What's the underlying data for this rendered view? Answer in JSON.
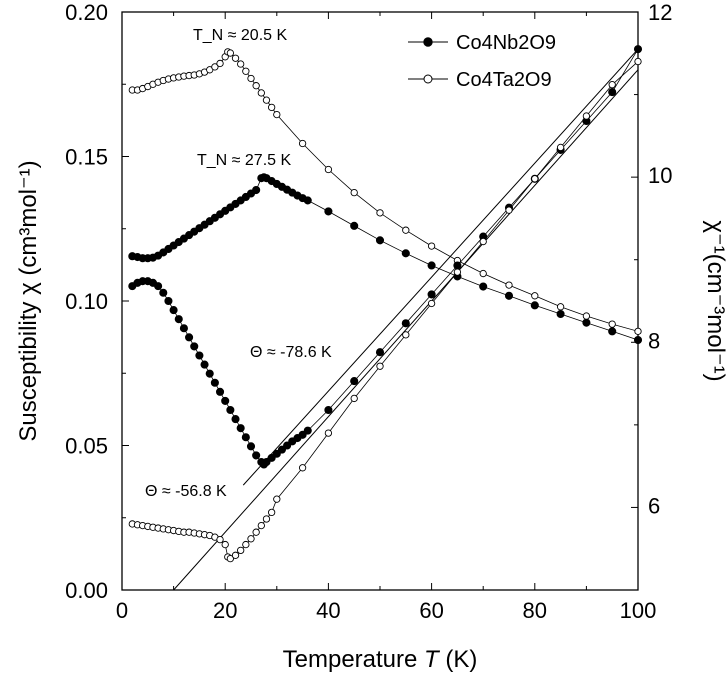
{
  "chart_data": {
    "type": "scatter",
    "xlabel": "Temperature",
    "xlabel_var": "T",
    "xlabel_unit": "(K)",
    "ylabel_left": "Susceptibility  χ (cm³mol⁻¹)",
    "ylabel_right": "χ⁻¹(cm⁻³mol⁻¹)",
    "xlim": [
      0,
      100
    ],
    "ylim_left": [
      0.0,
      0.2
    ],
    "ylim_right": [
      5.0,
      12.0
    ],
    "x_ticks": [
      "0",
      "20",
      "40",
      "60",
      "80",
      "100"
    ],
    "y_left_ticks": [
      "0.00",
      "0.05",
      "0.10",
      "0.15",
      "0.20"
    ],
    "y_right_ticks": [
      "6",
      "8",
      "10",
      "12"
    ],
    "legend": [
      {
        "label": "Co4Nb2O9",
        "marker": "filled-circle"
      },
      {
        "label": "Co4Ta2O9",
        "marker": "open-circle"
      }
    ],
    "annotations": {
      "tn_ta": "T_N ≈ 20.5 K",
      "tn_nb": "T_N ≈ 27.5 K",
      "theta_nb": "Θ ≈ -78.6 K",
      "theta_ta": "Θ ≈ -56.8 K"
    },
    "series": [
      {
        "name": "Co4Nb2O9 χ",
        "axis": "left",
        "marker": "filled",
        "x": [
          2,
          3,
          4,
          5,
          6,
          7,
          8,
          9,
          10,
          11,
          12,
          13,
          14,
          15,
          16,
          17,
          18,
          19,
          20,
          21,
          22,
          23,
          24,
          25,
          26,
          27,
          27.5,
          28,
          29,
          30,
          31,
          32,
          33,
          34,
          35,
          36,
          40,
          45,
          50,
          55,
          60,
          65,
          70,
          75,
          80,
          85,
          90,
          95,
          100
        ],
        "y": [
          0.1155,
          0.1152,
          0.1148,
          0.1148,
          0.115,
          0.1157,
          0.1168,
          0.118,
          0.1192,
          0.1204,
          0.1216,
          0.1228,
          0.124,
          0.1252,
          0.1264,
          0.1276,
          0.1288,
          0.13,
          0.1312,
          0.1324,
          0.1336,
          0.1348,
          0.136,
          0.1372,
          0.1384,
          0.1425,
          0.1428,
          0.1425,
          0.1415,
          0.1405,
          0.1395,
          0.1385,
          0.1375,
          0.1365,
          0.1356,
          0.1348,
          0.131,
          0.126,
          0.121,
          0.1165,
          0.1123,
          0.1085,
          0.105,
          0.1018,
          0.0985,
          0.0955,
          0.0925,
          0.0895,
          0.0865
        ]
      },
      {
        "name": "Co4Ta2O9 χ",
        "axis": "left",
        "marker": "open",
        "x": [
          2,
          3,
          4,
          5,
          6,
          7,
          8,
          9,
          10,
          11,
          12,
          13,
          14,
          15,
          16,
          17,
          18,
          19,
          20,
          20.5,
          21,
          22,
          23,
          24,
          25,
          26,
          27,
          28,
          29,
          30,
          35,
          40,
          45,
          50,
          55,
          60,
          65,
          70,
          75,
          80,
          85,
          90,
          95,
          100
        ],
        "y": [
          0.173,
          0.173,
          0.1735,
          0.1742,
          0.175,
          0.1757,
          0.1763,
          0.1768,
          0.1772,
          0.1775,
          0.1778,
          0.178,
          0.1782,
          0.1786,
          0.1792,
          0.18,
          0.181,
          0.1822,
          0.1845,
          0.1862,
          0.1858,
          0.184,
          0.182,
          0.1795,
          0.177,
          0.1745,
          0.172,
          0.1695,
          0.167,
          0.1645,
          0.1545,
          0.1455,
          0.1375,
          0.1305,
          0.1245,
          0.119,
          0.114,
          0.1095,
          0.1055,
          0.1018,
          0.098,
          0.0948,
          0.092,
          0.0895
        ]
      },
      {
        "name": "Co4Nb2O9 χ⁻¹",
        "axis": "right",
        "marker": "filled",
        "x": [
          2,
          3,
          4,
          5,
          6,
          7,
          8,
          9,
          10,
          11,
          12,
          13,
          14,
          15,
          16,
          17,
          18,
          19,
          20,
          21,
          22,
          23,
          24,
          25,
          26,
          27,
          27.5,
          28,
          29,
          30,
          31,
          32,
          33,
          34,
          35,
          36,
          40,
          45,
          50,
          55,
          60,
          65,
          70,
          75,
          80,
          85,
          90,
          95,
          100
        ],
        "y": [
          8.68,
          8.72,
          8.74,
          8.74,
          8.72,
          8.68,
          8.6,
          8.5,
          8.39,
          8.28,
          8.17,
          8.06,
          7.95,
          7.84,
          7.73,
          7.62,
          7.51,
          7.4,
          7.29,
          7.18,
          7.07,
          6.96,
          6.85,
          6.74,
          6.63,
          6.55,
          6.52,
          6.55,
          6.6,
          6.65,
          6.7,
          6.75,
          6.8,
          6.84,
          6.88,
          6.93,
          7.18,
          7.53,
          7.88,
          8.23,
          8.58,
          8.93,
          9.28,
          9.63,
          9.98,
          10.33,
          10.68,
          11.03,
          11.55
        ]
      },
      {
        "name": "Co4Ta2O9 χ⁻¹",
        "axis": "right",
        "marker": "open",
        "x": [
          2,
          3,
          4,
          5,
          6,
          7,
          8,
          9,
          10,
          11,
          12,
          13,
          14,
          15,
          16,
          17,
          18,
          19,
          20,
          20.5,
          21,
          22,
          23,
          24,
          25,
          26,
          27,
          28,
          29,
          30,
          35,
          40,
          45,
          50,
          55,
          60,
          65,
          70,
          75,
          80,
          85,
          90,
          95,
          100
        ],
        "y": [
          5.8,
          5.79,
          5.78,
          5.77,
          5.76,
          5.75,
          5.74,
          5.73,
          5.72,
          5.71,
          5.7,
          5.7,
          5.69,
          5.68,
          5.67,
          5.66,
          5.64,
          5.61,
          5.55,
          5.4,
          5.38,
          5.42,
          5.48,
          5.55,
          5.62,
          5.7,
          5.78,
          5.86,
          5.94,
          6.1,
          6.48,
          6.9,
          7.32,
          7.71,
          8.09,
          8.47,
          8.85,
          9.22,
          9.6,
          9.98,
          10.36,
          10.74,
          11.12,
          11.4
        ]
      }
    ],
    "fit_lines": [
      {
        "name": "Co4Nb2O9 Curie-Weiss fit",
        "axis": "right",
        "x": [
          23.5,
          100
        ],
        "y": [
          6.27,
          11.55
        ]
      },
      {
        "name": "Co4Ta2O9 Curie-Weiss fit",
        "axis": "right",
        "x": [
          10,
          100
        ],
        "y": [
          5.0,
          11.3
        ]
      }
    ]
  }
}
